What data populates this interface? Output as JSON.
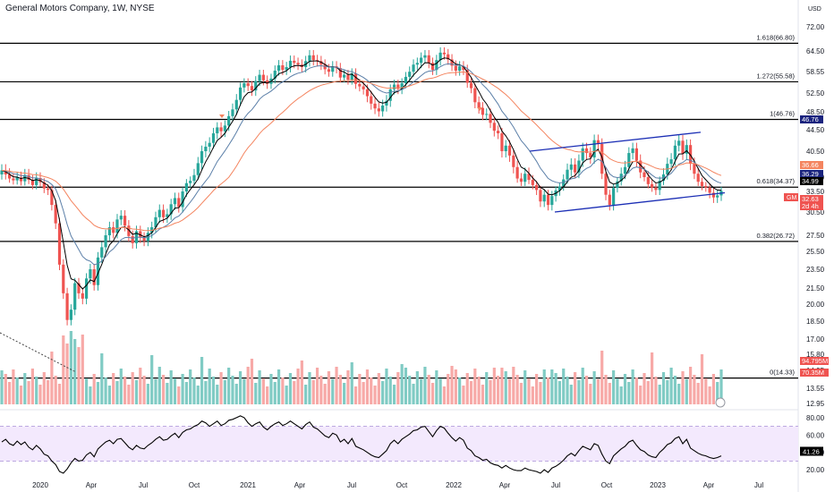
{
  "title": "General Motors Company, 1W, NYSE",
  "currency": "USD",
  "colors": {
    "up": "#26a69a",
    "down": "#ef5350",
    "volUp": "#80cbc4",
    "volDown": "#f7a9a7",
    "ema_fast": "#000000",
    "ema_mid": "#5b7fa8",
    "ema_slow": "#f4845f",
    "channel": "#1c2fb5",
    "rsi": "#000000",
    "rsi_band": "#f3e9fd"
  },
  "chart_data": {
    "type": "candlestick",
    "price_axis": {
      "ticks": [
        72.0,
        64.5,
        58.55,
        52.5,
        48.5,
        44.5,
        40.5,
        36.5,
        33.5,
        30.5,
        27.5,
        25.5,
        23.5,
        21.5,
        20.0,
        18.5,
        17.0,
        15.8,
        14.95,
        13.55,
        12.95
      ],
      "tick_labels": [
        "72.00",
        "64.50",
        "58.55",
        "52.50",
        "48.50",
        "44.50",
        "40.50",
        "36.50",
        "33.50",
        "30.50",
        "27.50",
        "25.50",
        "23.50",
        "21.50",
        "20.00",
        "18.50",
        "17.00",
        "15.80",
        "14.95",
        "13.55",
        "12.95"
      ]
    },
    "time_axis": [
      "2020",
      "Apr",
      "Jul",
      "Oct",
      "2021",
      "Apr",
      "Jul",
      "Oct",
      "2022",
      "Apr",
      "Jul",
      "Oct",
      "2023",
      "Apr",
      "Jul"
    ],
    "fib_levels": [
      {
        "label": "1.618(66.80)",
        "price": 66.8
      },
      {
        "label": "1.272(55.58)",
        "price": 55.58
      },
      {
        "label": "1(46.76)",
        "price": 46.76
      },
      {
        "label": "0.618(34.37)",
        "price": 34.37
      },
      {
        "label": "0.382(26.72)",
        "price": 26.72
      },
      {
        "label": "0(14.33)",
        "price": 14.33
      }
    ],
    "price_badges": [
      {
        "text": "46.76",
        "kind": "navy"
      },
      {
        "text": "36.66",
        "kind": "orange"
      },
      {
        "text": "36.29",
        "kind": "navy"
      },
      {
        "text": "34.99",
        "kind": "black"
      },
      {
        "text": "32.63",
        "kind": "red"
      },
      {
        "text": "2d 4h",
        "kind": "red"
      }
    ],
    "ticker_badge": "GM",
    "volume_badges": [
      {
        "text": "94.795M",
        "kind": "red"
      },
      {
        "text": "70.35M",
        "kind": "red"
      }
    ],
    "rsi_axis": {
      "ticks": [
        80,
        60,
        40,
        20
      ],
      "tick_labels": [
        "80.00",
        "60.00",
        "40.00",
        "20.00"
      ],
      "band": [
        30,
        70
      ]
    },
    "rsi_badge": "41.26",
    "weekly_closes": [
      37.5,
      36.9,
      36.2,
      35.8,
      36.4,
      35.6,
      36.8,
      35.9,
      34.8,
      36.3,
      35.4,
      34.1,
      33.8,
      31.5,
      29.0,
      24.0,
      21.0,
      18.6,
      19.5,
      22.0,
      21.0,
      20.5,
      22.5,
      23.5,
      21.8,
      24.8,
      26.0,
      27.5,
      28.5,
      27.8,
      29.5,
      30.0,
      28.7,
      27.4,
      26.5,
      28.0,
      27.2,
      26.8,
      27.8,
      28.5,
      29.8,
      30.8,
      29.8,
      30.2,
      31.6,
      32.5,
      31.2,
      33.5,
      35.2,
      35.7,
      36.8,
      38.6,
      40.5,
      41.3,
      42.0,
      43.8,
      45.0,
      44.2,
      45.4,
      47.5,
      49.0,
      51.0,
      54.0,
      55.2,
      54.4,
      53.2,
      55.8,
      57.6,
      56.0,
      55.0,
      56.5,
      58.8,
      60.3,
      59.0,
      59.8,
      61.6,
      61.0,
      60.5,
      59.8,
      61.5,
      63.2,
      61.8,
      61.5,
      60.5,
      59.2,
      58.5,
      60.0,
      59.5,
      56.8,
      57.6,
      56.2,
      58.0,
      55.0,
      54.3,
      53.5,
      51.8,
      50.2,
      49.2,
      48.6,
      49.8,
      50.8,
      53.5,
      54.8,
      53.6,
      55.2,
      57.0,
      58.5,
      60.5,
      61.0,
      62.5,
      63.2,
      61.0,
      59.0,
      61.8,
      64.0,
      63.5,
      62.0,
      60.2,
      58.8,
      60.0,
      59.0,
      55.3,
      53.8,
      50.5,
      49.3,
      47.8,
      48.0,
      46.0,
      44.3,
      43.8,
      40.5,
      41.5,
      39.8,
      38.0,
      36.2,
      35.5,
      37.0,
      35.9,
      34.8,
      33.8,
      32.0,
      33.0,
      31.5,
      32.8,
      33.7,
      34.5,
      36.0,
      37.6,
      38.4,
      37.2,
      39.0,
      41.0,
      40.2,
      39.5,
      42.5,
      41.8,
      37.0,
      33.0,
      31.5,
      34.2,
      35.6,
      37.0,
      38.0,
      40.2,
      41.0,
      39.0,
      37.2,
      36.5,
      35.0,
      34.3,
      33.8,
      35.7,
      36.9,
      38.5,
      39.2,
      41.5,
      42.4,
      40.1,
      41.6,
      38.5,
      37.0,
      35.5,
      34.6,
      34.3,
      33.3,
      32.6,
      32.9,
      33.6
    ],
    "rsi_values": [
      52,
      55,
      50,
      48,
      53,
      49,
      52,
      46,
      43,
      48,
      44,
      38,
      36,
      30,
      26,
      18,
      16,
      21,
      28,
      33,
      30,
      31,
      37,
      40,
      35,
      44,
      48,
      52,
      54,
      50,
      55,
      56,
      51,
      46,
      43,
      48,
      45,
      44,
      48,
      51,
      55,
      58,
      54,
      55,
      59,
      62,
      57,
      63,
      66,
      67,
      70,
      72,
      76,
      74,
      70,
      73,
      76,
      71,
      73,
      77,
      78,
      80,
      82,
      80,
      74,
      70,
      73,
      75,
      69,
      66,
      70,
      73,
      75,
      71,
      73,
      76,
      73,
      70,
      67,
      72,
      75,
      69,
      67,
      63,
      59,
      57,
      62,
      60,
      52,
      55,
      50,
      56,
      47,
      45,
      43,
      40,
      37,
      35,
      34,
      38,
      42,
      50,
      54,
      50,
      55,
      58,
      61,
      65,
      66,
      69,
      70,
      64,
      58,
      65,
      70,
      68,
      62,
      57,
      53,
      57,
      54,
      45,
      42,
      36,
      34,
      31,
      32,
      28,
      26,
      25,
      22,
      25,
      22,
      20,
      19,
      19,
      22,
      20,
      19,
      18,
      16,
      20,
      17,
      22,
      24,
      27,
      31,
      36,
      39,
      36,
      42,
      47,
      45,
      43,
      50,
      48,
      38,
      30,
      27,
      36,
      40,
      44,
      47,
      52,
      54,
      48,
      43,
      41,
      37,
      35,
      34,
      40,
      44,
      49,
      51,
      56,
      58,
      50,
      55,
      45,
      42,
      39,
      37,
      36,
      34,
      33,
      34,
      36
    ]
  }
}
